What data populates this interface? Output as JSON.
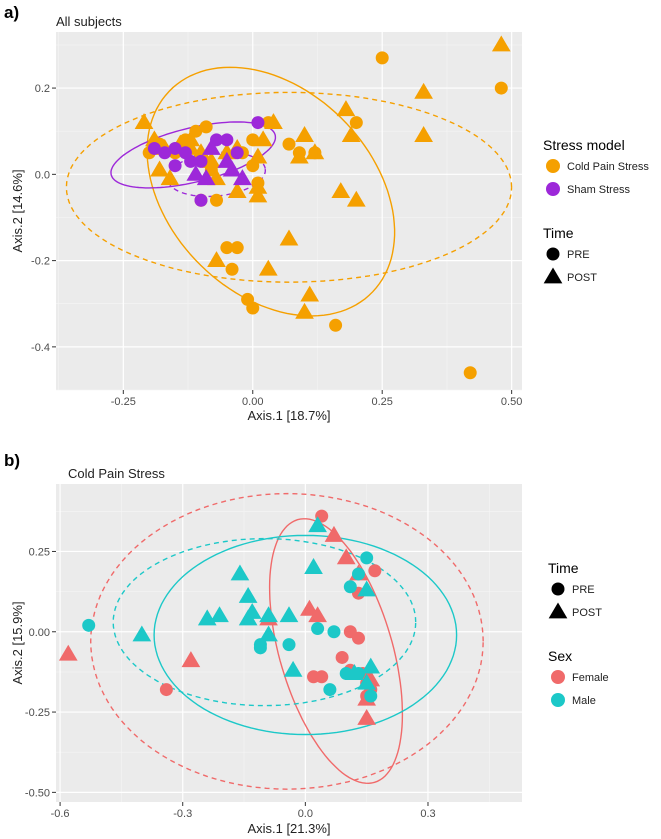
{
  "figure": {
    "panel_a_label": "a)",
    "panel_b_label": "b)"
  },
  "chart_data": [
    {
      "type": "scatter",
      "panel": "a)",
      "title": "All subjects",
      "xlabel": "Axis.1   [18.7%]",
      "ylabel": "Axis.2   [14.6%]",
      "xlim": [
        -0.38,
        0.52
      ],
      "ylim": [
        -0.5,
        0.33
      ],
      "xticks": [
        -0.25,
        0.0,
        0.25,
        0.5
      ],
      "xtick_labels": [
        "-0.25",
        "0.00",
        "0.25",
        "0.50"
      ],
      "yticks": [
        0.2,
        0.0,
        -0.2,
        -0.4
      ],
      "ytick_labels": [
        "0.2",
        "0.0",
        "-0.2",
        "-0.4"
      ],
      "grid": true,
      "legends": [
        {
          "title": "Stress model",
          "kind": "fill",
          "items": [
            {
              "label": "Cold Pain Stress",
              "color": "#F5A000"
            },
            {
              "label": "Sham Stress",
              "color": "#9D28D9"
            }
          ]
        },
        {
          "title": "Time",
          "kind": "shape",
          "items": [
            {
              "label": "PRE",
              "shape": "circle"
            },
            {
              "label": "POST",
              "shape": "triangle"
            }
          ]
        }
      ],
      "ellipses": [
        {
          "group": "Cold Pain Stress",
          "time": "PRE",
          "style": "solid",
          "color": "#F5A000",
          "center": [
            0.035,
            -0.04
          ],
          "radii": [
            0.31,
            0.21
          ],
          "angle_deg": -60
        },
        {
          "group": "Cold Pain Stress",
          "time": "POST",
          "style": "dashed",
          "color": "#F5A000",
          "center": [
            0.07,
            -0.03
          ],
          "radii": [
            0.43,
            0.22
          ],
          "angle_deg": 0
        },
        {
          "group": "Sham Stress",
          "time": "PRE",
          "style": "solid",
          "color": "#9D28D9",
          "center": [
            -0.115,
            0.045
          ],
          "radii": [
            0.165,
            0.062
          ],
          "angle_deg": 17
        },
        {
          "group": "Sham Stress",
          "time": "POST",
          "style": "dashed",
          "color": "#9D28D9",
          "center": [
            -0.07,
            0.0
          ],
          "radii": [
            0.095,
            0.05
          ],
          "angle_deg": 8
        }
      ],
      "series": [
        {
          "name": "Cold Pain Stress",
          "time": "PRE",
          "shape": "circle",
          "color": "#F5A000",
          "points": [
            [
              -0.2,
              0.05
            ],
            [
              -0.18,
              0.07
            ],
            [
              -0.15,
              0.05
            ],
            [
              -0.13,
              0.08
            ],
            [
              -0.11,
              0.1
            ],
            [
              -0.09,
              0.11
            ],
            [
              -0.1,
              0.04
            ],
            [
              -0.08,
              0.01
            ],
            [
              -0.07,
              -0.06
            ],
            [
              -0.1,
              -0.06
            ],
            [
              -0.02,
              0.05
            ],
            [
              0.0,
              0.08
            ],
            [
              0.0,
              0.02
            ],
            [
              0.01,
              -0.02
            ],
            [
              0.03,
              0.12
            ],
            [
              0.07,
              0.07
            ],
            [
              0.09,
              0.05
            ],
            [
              0.12,
              0.05
            ],
            [
              0.2,
              0.12
            ],
            [
              0.25,
              0.27
            ],
            [
              0.48,
              0.2
            ],
            [
              0.42,
              -0.46
            ],
            [
              -0.05,
              -0.17
            ],
            [
              -0.03,
              -0.17
            ],
            [
              -0.04,
              -0.22
            ],
            [
              -0.01,
              -0.29
            ],
            [
              0.0,
              -0.31
            ],
            [
              0.16,
              -0.35
            ]
          ]
        },
        {
          "name": "Cold Pain Stress",
          "time": "POST",
          "shape": "triangle",
          "color": "#F5A000",
          "points": [
            [
              -0.21,
              0.12
            ],
            [
              -0.19,
              0.08
            ],
            [
              -0.17,
              0.06
            ],
            [
              -0.14,
              0.07
            ],
            [
              -0.12,
              0.06
            ],
            [
              -0.1,
              0.05
            ],
            [
              -0.08,
              0.03
            ],
            [
              -0.05,
              0.05
            ],
            [
              -0.03,
              0.06
            ],
            [
              0.01,
              0.04
            ],
            [
              0.02,
              0.08
            ],
            [
              0.04,
              0.12
            ],
            [
              0.1,
              0.09
            ],
            [
              0.12,
              0.05
            ],
            [
              0.18,
              0.15
            ],
            [
              0.19,
              0.09
            ],
            [
              0.33,
              0.19
            ],
            [
              0.33,
              0.09
            ],
            [
              0.48,
              0.3
            ],
            [
              0.09,
              0.04
            ],
            [
              -0.18,
              0.01
            ],
            [
              -0.16,
              -0.01
            ],
            [
              -0.07,
              -0.01
            ],
            [
              -0.03,
              -0.04
            ],
            [
              0.01,
              -0.05
            ],
            [
              0.17,
              -0.04
            ],
            [
              0.2,
              -0.06
            ],
            [
              0.07,
              -0.15
            ],
            [
              0.03,
              -0.22
            ],
            [
              -0.07,
              -0.2
            ],
            [
              0.11,
              -0.28
            ],
            [
              0.1,
              -0.32
            ],
            [
              0.01,
              -0.03
            ],
            [
              -0.12,
              0.08
            ]
          ]
        },
        {
          "name": "Sham Stress",
          "time": "PRE",
          "shape": "circle",
          "color": "#9D28D9",
          "points": [
            [
              -0.19,
              0.06
            ],
            [
              -0.17,
              0.05
            ],
            [
              -0.15,
              0.06
            ],
            [
              -0.13,
              0.05
            ],
            [
              -0.12,
              0.03
            ],
            [
              -0.1,
              0.03
            ],
            [
              -0.07,
              0.08
            ],
            [
              -0.05,
              0.08
            ],
            [
              -0.03,
              0.05
            ],
            [
              0.01,
              0.12
            ],
            [
              -0.1,
              -0.06
            ],
            [
              -0.15,
              0.02
            ]
          ]
        },
        {
          "name": "Sham Stress",
          "time": "POST",
          "shape": "triangle",
          "color": "#9D28D9",
          "points": [
            [
              -0.11,
              0.0
            ],
            [
              -0.09,
              -0.01
            ],
            [
              -0.05,
              0.03
            ],
            [
              -0.04,
              0.01
            ],
            [
              -0.02,
              -0.01
            ],
            [
              -0.08,
              0.06
            ]
          ]
        }
      ]
    },
    {
      "type": "scatter",
      "panel": "b)",
      "title": "Cold Pain Stress",
      "xlabel": "Axis.1 [21.3%]",
      "ylabel": "Axis.2 [15.9%]",
      "xlim": [
        -0.61,
        0.53
      ],
      "ylim": [
        -0.53,
        0.46
      ],
      "xticks": [
        -0.6,
        -0.3,
        0.0,
        0.3
      ],
      "xtick_labels": [
        "-0.6",
        "-0.3",
        "0.0",
        "0.3"
      ],
      "yticks": [
        0.25,
        0.0,
        -0.25,
        -0.5
      ],
      "ytick_labels": [
        "0.25",
        "0.00",
        "-0.25",
        "-0.50"
      ],
      "grid": true,
      "legends": [
        {
          "title": "Time",
          "kind": "shape",
          "items": [
            {
              "label": "PRE",
              "shape": "circle"
            },
            {
              "label": "POST",
              "shape": "triangle"
            }
          ]
        },
        {
          "title": "Sex",
          "kind": "fill",
          "items": [
            {
              "label": "Female",
              "color": "#F06A6A"
            },
            {
              "label": "Male",
              "color": "#1CC8C8"
            }
          ]
        }
      ],
      "ellipses": [
        {
          "group": "Female",
          "time": "PRE",
          "style": "solid",
          "color": "#F06A6A",
          "center": [
            0.075,
            -0.06
          ],
          "radii": [
            0.42,
            0.14
          ],
          "angle_deg": -78
        },
        {
          "group": "Female",
          "time": "POST",
          "style": "dashed",
          "color": "#F06A6A",
          "center": [
            -0.045,
            -0.03
          ],
          "radii": [
            0.48,
            0.46
          ],
          "angle_deg": 0
        },
        {
          "group": "Male",
          "time": "PRE",
          "style": "solid",
          "color": "#1CC8C8",
          "center": [
            0.0,
            -0.01
          ],
          "radii": [
            0.37,
            0.31
          ],
          "angle_deg": 0
        },
        {
          "group": "Male",
          "time": "POST",
          "style": "dashed",
          "color": "#1CC8C8",
          "center": [
            -0.1,
            0.03
          ],
          "radii": [
            0.37,
            0.26
          ],
          "angle_deg": 0
        }
      ],
      "series": [
        {
          "name": "Female",
          "time": "PRE",
          "shape": "circle",
          "color": "#F06A6A",
          "points": [
            [
              0.04,
              0.36
            ],
            [
              0.17,
              0.19
            ],
            [
              0.13,
              0.12
            ],
            [
              0.11,
              0.0
            ],
            [
              0.13,
              -0.02
            ],
            [
              0.09,
              -0.08
            ],
            [
              0.02,
              -0.14
            ],
            [
              0.04,
              -0.14
            ],
            [
              0.11,
              -0.12
            ],
            [
              0.14,
              -0.13
            ],
            [
              0.15,
              -0.16
            ],
            [
              0.16,
              -0.18
            ],
            [
              0.15,
              -0.2
            ],
            [
              -0.34,
              -0.18
            ]
          ]
        },
        {
          "name": "Female",
          "time": "POST",
          "shape": "triangle",
          "color": "#F06A6A",
          "points": [
            [
              0.07,
              0.3
            ],
            [
              0.1,
              0.23
            ],
            [
              0.13,
              0.18
            ],
            [
              0.01,
              0.07
            ],
            [
              0.03,
              0.05
            ],
            [
              -0.09,
              0.04
            ],
            [
              -0.58,
              -0.07
            ],
            [
              -0.28,
              -0.09
            ],
            [
              0.16,
              -0.15
            ],
            [
              0.15,
              -0.21
            ],
            [
              0.15,
              -0.27
            ]
          ]
        },
        {
          "name": "Male",
          "time": "PRE",
          "shape": "circle",
          "color": "#1CC8C8",
          "points": [
            [
              0.15,
              0.23
            ],
            [
              0.13,
              0.18
            ],
            [
              0.11,
              0.14
            ],
            [
              0.03,
              0.01
            ],
            [
              0.07,
              0.0
            ],
            [
              -0.11,
              -0.04
            ],
            [
              -0.11,
              -0.05
            ],
            [
              -0.04,
              -0.04
            ],
            [
              0.16,
              -0.2
            ],
            [
              0.06,
              -0.18
            ],
            [
              -0.53,
              0.02
            ],
            [
              0.1,
              -0.13
            ],
            [
              0.13,
              -0.13
            ]
          ]
        },
        {
          "name": "Male",
          "time": "POST",
          "shape": "triangle",
          "color": "#1CC8C8",
          "points": [
            [
              0.03,
              0.33
            ],
            [
              0.02,
              0.2
            ],
            [
              -0.16,
              0.18
            ],
            [
              -0.14,
              0.11
            ],
            [
              -0.13,
              0.06
            ],
            [
              -0.21,
              0.05
            ],
            [
              -0.24,
              0.04
            ],
            [
              -0.09,
              0.05
            ],
            [
              -0.04,
              0.05
            ],
            [
              -0.14,
              0.04
            ],
            [
              -0.09,
              -0.01
            ],
            [
              -0.4,
              -0.01
            ],
            [
              0.15,
              0.13
            ],
            [
              -0.03,
              -0.12
            ],
            [
              0.16,
              -0.11
            ],
            [
              0.15,
              -0.16
            ],
            [
              0.12,
              -0.13
            ]
          ]
        }
      ]
    }
  ]
}
